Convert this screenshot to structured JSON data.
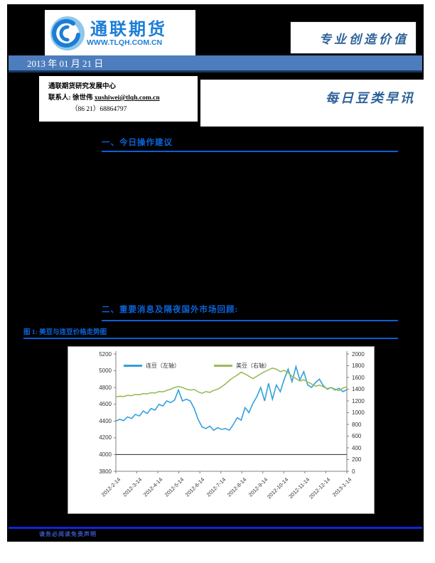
{
  "header": {
    "logo_title": "通联期货",
    "logo_url": "WWW.TLQH.COM.CN",
    "slogan": "专业创造价值",
    "date": "2013 年 01 月 21 日",
    "dept": "通联期货研究发展中心",
    "contact_label": "联系人: 徐世伟",
    "contact_email": "xushiwei@tlqh.com.cn",
    "contact_phone": "（86 21）68864797",
    "report_title": "每日豆类早讯"
  },
  "sections": {
    "s1": "一、今日操作建议",
    "s2": "二、重要消息及隔夜国外市场回顾:",
    "fig_caption": "图 1: 美豆与连豆价格走势图"
  },
  "footer": {
    "note": "请务必阅读免责声明"
  },
  "colors": {
    "heading_blue": "#0a64d8",
    "date_bar": "#4d7dbc",
    "footer_line": "#1026dd",
    "series_lian": "#33a0dc",
    "series_mei": "#9bbb59",
    "axis_gray": "#808080",
    "grid_dark": "#404040"
  },
  "chart_data": {
    "type": "line",
    "title": "图 1: 美豆与连豆价格走势图",
    "grid": "single dark horizontal gridline at left-axis value 4000",
    "legend_position": "top-inside",
    "x_tick_labels": [
      "2012-2-14",
      "2012-3-14",
      "2012-4-14",
      "2012-5-14",
      "2012-6-14",
      "2012-7-14",
      "2012-8-14",
      "2012-9-14",
      "2012-10-14",
      "2012-11-14",
      "2012-12-14",
      "2013-1-14"
    ],
    "left_axis": {
      "min": 3800,
      "max": 5200,
      "step": 200,
      "tick_labels": [
        "3800",
        "4000",
        "4200",
        "4400",
        "4600",
        "4800",
        "5000",
        "5200"
      ]
    },
    "right_axis": {
      "min": 0,
      "max": 2000,
      "step": 200,
      "tick_labels": [
        "0",
        "200",
        "400",
        "600",
        "800",
        "1000",
        "1200",
        "1400",
        "1600",
        "1800",
        "2000"
      ]
    },
    "gridline_at_left_value": 4000,
    "series": [
      {
        "name": "连豆（左轴）",
        "axis": "left",
        "color": "#33a0dc",
        "values": [
          4400,
          4420,
          4405,
          4450,
          4430,
          4480,
          4460,
          4520,
          4490,
          4550,
          4530,
          4600,
          4580,
          4640,
          4620,
          4650,
          4770,
          4640,
          4660,
          4640,
          4550,
          4420,
          4330,
          4310,
          4340,
          4290,
          4320,
          4300,
          4310,
          4290,
          4360,
          4440,
          4410,
          4560,
          4500,
          4610,
          4690,
          4800,
          4640,
          4850,
          4660,
          4830,
          4750,
          4900,
          5020,
          4870,
          5050,
          4890,
          4990,
          4830,
          4800,
          4860,
          4900,
          4820,
          4780,
          4800,
          4770,
          4790,
          4750,
          4775
        ]
      },
      {
        "name": "美豆（右轴）",
        "axis": "right",
        "color": "#9bbb59",
        "values": [
          1270,
          1280,
          1275,
          1295,
          1290,
          1310,
          1305,
          1325,
          1320,
          1340,
          1335,
          1360,
          1355,
          1380,
          1400,
          1430,
          1445,
          1430,
          1400,
          1385,
          1395,
          1355,
          1330,
          1360,
          1345,
          1380,
          1400,
          1440,
          1490,
          1550,
          1600,
          1640,
          1690,
          1660,
          1620,
          1580,
          1620,
          1660,
          1700,
          1730,
          1760,
          1740,
          1700,
          1720,
          1680,
          1620,
          1580,
          1540,
          1560,
          1520,
          1490,
          1450,
          1470,
          1440,
          1410,
          1430,
          1400,
          1375,
          1420,
          1440
        ]
      }
    ]
  }
}
